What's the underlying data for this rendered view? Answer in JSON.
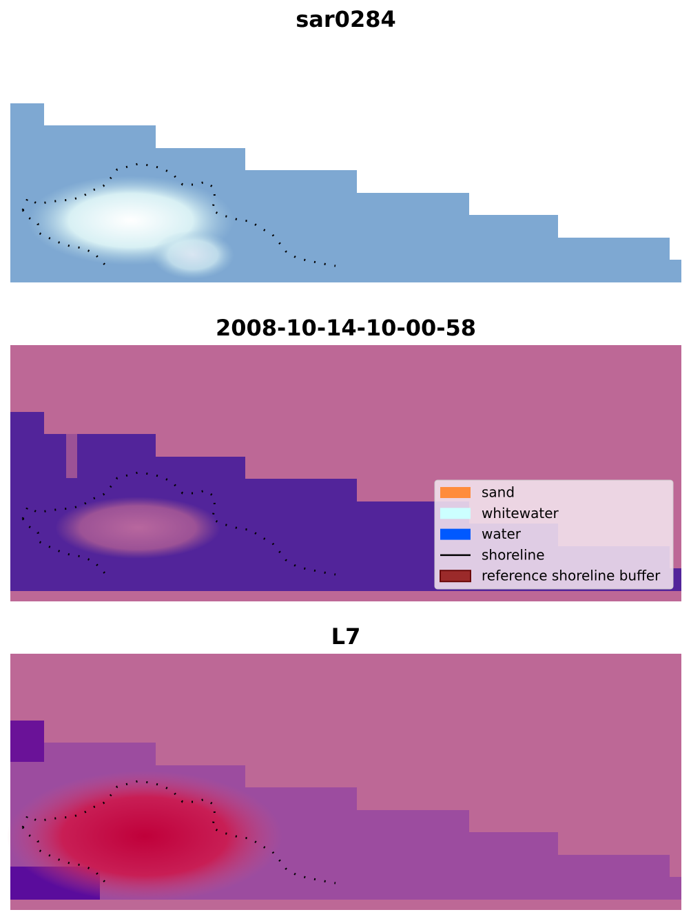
{
  "panels": [
    {
      "title": "sar0284"
    },
    {
      "title": "2008-10-14-10-00-58"
    },
    {
      "title": "L7"
    }
  ],
  "legend": [
    {
      "label": "sand",
      "color": "#ff8c3c"
    },
    {
      "label": "whitewater",
      "color": "#ccffff"
    },
    {
      "label": "water",
      "color": "#0059ff"
    },
    {
      "label": "shoreline",
      "color": "#000000"
    },
    {
      "label": "reference shoreline buffer",
      "color": "#9b2a2a"
    }
  ]
}
